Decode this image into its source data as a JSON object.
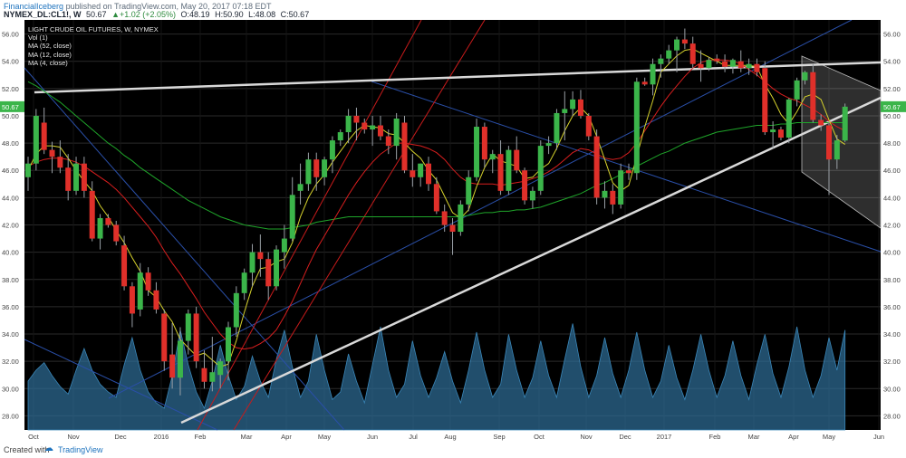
{
  "header": {
    "publisher": "FinancialIceberg",
    "publish_text": "published on TradingView.com, May 20, 2017 07:18 EDT",
    "symbol": "NYMEX_DL:CL1!, W",
    "last": "50.67",
    "change": "▲+1.02 (+2.05%)",
    "open": "O:48.19",
    "high": "H:50.90",
    "low": "L:48.08",
    "close": "C:50.67"
  },
  "legend": {
    "title": "LIGHT CRUDE OIL FUTURES, W, NYMEX",
    "items": [
      "Vol (1)",
      "MA (52, close)",
      "MA (12, close)",
      "MA (4, close)"
    ]
  },
  "footer": {
    "created_with": "Created with",
    "brand": "TradingView"
  },
  "colors": {
    "background": "#000000",
    "up": "#3bb54a",
    "down": "#e0302a",
    "ma52": "#1fa52a",
    "ma12": "#d81e1e",
    "ma4": "#d6d22c",
    "volume": "#2f6f9a",
    "trendline": "#d9d9d9",
    "channel_blue": "#2a4fa8",
    "channel_red": "#c81b1b",
    "price_badge": "#3bb54a"
  },
  "chart_data": {
    "type": "candlestick",
    "title": "LIGHT CRUDE OIL FUTURES, W, NYMEX",
    "ylim": [
      27,
      57
    ],
    "y_ticks": [
      "28.00",
      "30.00",
      "32.00",
      "34.00",
      "36.00",
      "38.00",
      "40.00",
      "42.00",
      "44.00",
      "46.00",
      "48.00",
      "50.00",
      "52.00",
      "54.00",
      "56.00"
    ],
    "last_price_label": "50.67",
    "x_ticks": [
      "Oct",
      "Nov",
      "Dec",
      "2016",
      "Feb",
      "Mar",
      "Apr",
      "May",
      "Jun",
      "Jul",
      "Aug",
      "Sep",
      "Oct",
      "Nov",
      "Dec",
      "2017",
      "Feb",
      "Mar",
      "Apr",
      "May",
      "Jun"
    ],
    "ohlc": [
      [
        45.5,
        47.0,
        44.5,
        46.5
      ],
      [
        46.5,
        50.5,
        46.0,
        50.0
      ],
      [
        49.5,
        50.6,
        47.2,
        47.5
      ],
      [
        47.5,
        48.1,
        45.8,
        47.0
      ],
      [
        47.0,
        48.2,
        45.8,
        46.2
      ],
      [
        46.2,
        47.2,
        43.8,
        44.5
      ],
      [
        44.5,
        47.0,
        44.2,
        46.5
      ],
      [
        46.5,
        47.0,
        44.0,
        44.5
      ],
      [
        44.5,
        45.2,
        40.8,
        41.0
      ],
      [
        41.0,
        42.8,
        40.2,
        42.5
      ],
      [
        42.5,
        42.8,
        41.8,
        42.0
      ],
      [
        42.0,
        42.3,
        40.5,
        40.8
      ],
      [
        40.5,
        41.2,
        37.2,
        37.5
      ],
      [
        37.5,
        37.8,
        34.5,
        35.5
      ],
      [
        35.8,
        39.2,
        35.3,
        38.5
      ],
      [
        38.5,
        38.9,
        36.8,
        37.2
      ],
      [
        37.2,
        37.8,
        35.5,
        35.8
      ],
      [
        35.5,
        35.8,
        31.3,
        32.0
      ],
      [
        32.5,
        34.8,
        30.0,
        30.8
      ],
      [
        30.8,
        34.5,
        29.5,
        33.5
      ],
      [
        33.5,
        35.8,
        32.5,
        35.5
      ],
      [
        35.5,
        36.0,
        31.5,
        32.0
      ],
      [
        31.5,
        32.8,
        30.0,
        30.5
      ],
      [
        30.5,
        33.8,
        29.8,
        31.2
      ],
      [
        31.0,
        32.2,
        30.0,
        32.0
      ],
      [
        32.0,
        34.9,
        30.6,
        34.5
      ],
      [
        34.5,
        37.5,
        33.8,
        37.0
      ],
      [
        37.0,
        38.8,
        36.5,
        38.5
      ],
      [
        38.5,
        40.6,
        37.5,
        40.0
      ],
      [
        40.0,
        41.3,
        38.2,
        39.5
      ],
      [
        39.5,
        40.0,
        36.5,
        37.5
      ],
      [
        37.5,
        40.5,
        37.2,
        40.2
      ],
      [
        40.0,
        42.0,
        38.8,
        41.0
      ],
      [
        41.0,
        45.5,
        40.8,
        44.2
      ],
      [
        44.5,
        46.5,
        43.5,
        45.0
      ],
      [
        45.0,
        47.3,
        44.5,
        46.8
      ],
      [
        46.8,
        47.3,
        44.5,
        45.5
      ],
      [
        45.5,
        47.0,
        44.9,
        46.8
      ],
      [
        46.8,
        48.5,
        45.8,
        48.2
      ],
      [
        48.2,
        49.0,
        47.8,
        48.8
      ],
      [
        48.8,
        50.5,
        48.0,
        50.0
      ],
      [
        50.0,
        50.6,
        48.2,
        49.5
      ],
      [
        49.5,
        49.8,
        48.7,
        49.0
      ],
      [
        49.0,
        50.0,
        47.8,
        49.3
      ],
      [
        49.3,
        50.0,
        48.2,
        48.5
      ],
      [
        48.5,
        49.0,
        47.2,
        47.8
      ],
      [
        47.8,
        50.2,
        46.8,
        49.8
      ],
      [
        49.5,
        50.0,
        45.8,
        46.0
      ],
      [
        46.0,
        47.2,
        44.8,
        45.5
      ],
      [
        45.5,
        46.5,
        44.8,
        46.5
      ],
      [
        46.5,
        47.0,
        44.5,
        45.0
      ],
      [
        45.0,
        45.5,
        42.8,
        43.0
      ],
      [
        43.0,
        43.5,
        41.5,
        42.0
      ],
      [
        42.0,
        42.5,
        39.8,
        41.5
      ],
      [
        41.5,
        43.8,
        41.2,
        43.5
      ],
      [
        43.5,
        46.0,
        43.0,
        45.5
      ],
      [
        45.5,
        49.8,
        45.2,
        49.2
      ],
      [
        49.2,
        49.5,
        46.2,
        46.8
      ],
      [
        46.8,
        47.5,
        45.8,
        47.2
      ],
      [
        47.2,
        48.2,
        44.2,
        44.5
      ],
      [
        44.5,
        47.8,
        44.2,
        47.5
      ],
      [
        47.5,
        48.5,
        45.8,
        46.0
      ],
      [
        46.0,
        46.2,
        43.5,
        43.8
      ],
      [
        43.8,
        44.8,
        43.2,
        44.5
      ],
      [
        44.5,
        48.2,
        44.2,
        47.8
      ],
      [
        47.8,
        48.5,
        47.2,
        48.0
      ],
      [
        48.0,
        50.5,
        47.5,
        50.2
      ],
      [
        50.2,
        51.8,
        48.2,
        50.5
      ],
      [
        50.5,
        51.8,
        50.0,
        51.2
      ],
      [
        51.2,
        51.9,
        49.8,
        50.0
      ],
      [
        50.0,
        50.2,
        48.2,
        48.5
      ],
      [
        48.5,
        49.0,
        43.5,
        44.0
      ],
      [
        44.0,
        45.2,
        43.2,
        44.5
      ],
      [
        44.5,
        45.0,
        42.8,
        43.5
      ],
      [
        43.5,
        46.5,
        43.2,
        46.0
      ],
      [
        46.0,
        46.5,
        45.3,
        45.8
      ],
      [
        45.8,
        52.8,
        45.3,
        52.5
      ],
      [
        52.5,
        52.8,
        52.2,
        52.3
      ],
      [
        52.3,
        54.2,
        51.5,
        53.8
      ],
      [
        53.8,
        54.5,
        52.8,
        54.2
      ],
      [
        54.2,
        55.2,
        53.8,
        54.8
      ],
      [
        54.8,
        55.8,
        53.2,
        55.6
      ],
      [
        55.6,
        56.4,
        54.9,
        55.3
      ],
      [
        55.3,
        55.8,
        53.5,
        53.8
      ],
      [
        53.8,
        54.8,
        52.5,
        53.5
      ],
      [
        53.5,
        54.3,
        53.3,
        54.1
      ],
      [
        54.2,
        54.5,
        53.8,
        54.0
      ],
      [
        54.0,
        54.5,
        53.2,
        53.6
      ],
      [
        53.6,
        54.2,
        53.1,
        54.1
      ],
      [
        54.0,
        54.8,
        53.2,
        53.5
      ],
      [
        53.5,
        54.2,
        53.0,
        53.8
      ],
      [
        53.8,
        54.2,
        52.9,
        53.2
      ],
      [
        53.5,
        54.0,
        48.6,
        48.8
      ],
      [
        48.8,
        49.6,
        47.6,
        49.0
      ],
      [
        49.0,
        49.2,
        48.2,
        48.4
      ],
      [
        48.4,
        51.3,
        48.0,
        51.2
      ],
      [
        51.2,
        52.8,
        50.7,
        52.6
      ],
      [
        52.6,
        53.3,
        52.3,
        53.2
      ],
      [
        53.2,
        53.8,
        49.5,
        49.7
      ],
      [
        49.7,
        50.1,
        48.9,
        49.3
      ],
      [
        49.3,
        49.6,
        44.2,
        46.8
      ],
      [
        46.8,
        48.6,
        46.1,
        48.2
      ],
      [
        48.19,
        50.9,
        48.08,
        50.67
      ]
    ],
    "ma4": [
      46.0,
      47.2,
      47.8,
      47.8,
      47.7,
      46.9,
      46.0,
      45.2,
      44.5,
      43.4,
      42.6,
      41.6,
      40.7,
      39.6,
      38.6,
      37.2,
      36.7,
      35.7,
      34.9,
      33.6,
      33.0,
      32.4,
      32.6,
      32.1,
      31.6,
      31.8,
      33.5,
      35.6,
      37.5,
      38.8,
      38.9,
      39.3,
      39.5,
      40.7,
      42.6,
      44.0,
      45.0,
      45.7,
      46.6,
      47.4,
      48.2,
      48.9,
      49.3,
      49.2,
      49.1,
      48.7,
      48.6,
      48.0,
      47.4,
      46.9,
      46.0,
      45.3,
      44.1,
      42.9,
      42.5,
      43.1,
      44.8,
      46.2,
      47.2,
      46.7,
      46.5,
      46.3,
      45.4,
      45.5,
      46.1,
      46.5,
      47.6,
      48.9,
      50.0,
      50.6,
      50.0,
      48.5,
      46.8,
      45.1,
      44.5,
      44.9,
      47.0,
      49.2,
      51.1,
      53.2,
      53.8,
      54.4,
      54.8,
      54.9,
      54.6,
      54.3,
      54.0,
      53.7,
      53.7,
      53.7,
      53.7,
      53.6,
      52.3,
      51.3,
      50.1,
      49.4,
      50.3,
      51.4,
      51.6,
      51.2,
      49.7,
      48.3,
      47.9
    ],
    "ma12": [
      46.3,
      46.6,
      46.8,
      46.9,
      46.9,
      46.8,
      46.6,
      46.3,
      45.9,
      45.5,
      45.1,
      44.6,
      44.0,
      43.3,
      42.6,
      41.9,
      41.1,
      40.1,
      39.2,
      38.4,
      37.5,
      36.6,
      35.6,
      34.8,
      34.0,
      33.4,
      33.0,
      32.9,
      33.0,
      33.3,
      33.7,
      34.3,
      35.3,
      36.4,
      37.7,
      39.0,
      40.2,
      41.2,
      42.2,
      43.2,
      44.2,
      45.1,
      45.9,
      46.6,
      47.2,
      47.6,
      48.0,
      48.0,
      47.9,
      47.8,
      47.6,
      47.3,
      46.8,
      46.1,
      45.5,
      45.1,
      45.0,
      45.0,
      45.0,
      44.9,
      45.0,
      45.1,
      45.2,
      45.4,
      45.6,
      45.9,
      46.3,
      46.8,
      47.3,
      47.6,
      47.5,
      47.2,
      46.9,
      46.8,
      46.9,
      47.3,
      48.0,
      48.9,
      49.8,
      50.7,
      51.5,
      52.2,
      52.9,
      53.5,
      53.9,
      54.1,
      54.1,
      54.1,
      54.0,
      53.8,
      53.4,
      53.0,
      52.5,
      52.0,
      51.6,
      51.3,
      51.1,
      50.8,
      50.5,
      50.1,
      49.6,
      49.2,
      48.9
    ],
    "ma52": [
      52.5,
      52.2,
      51.8,
      51.4,
      51.0,
      50.5,
      50.0,
      49.5,
      49.0,
      48.5,
      48.0,
      47.6,
      47.1,
      46.7,
      46.2,
      45.8,
      45.4,
      45.0,
      44.6,
      44.2,
      43.8,
      43.5,
      43.2,
      42.9,
      42.6,
      42.4,
      42.2,
      42.0,
      41.9,
      41.8,
      41.7,
      41.7,
      41.7,
      41.8,
      41.9,
      42.0,
      42.2,
      42.3,
      42.4,
      42.5,
      42.6,
      42.6,
      42.6,
      42.6,
      42.6,
      42.6,
      42.6,
      42.6,
      42.6,
      42.6,
      42.6,
      42.6,
      42.6,
      42.6,
      42.6,
      42.7,
      42.8,
      42.9,
      42.9,
      43.0,
      43.0,
      43.1,
      43.1,
      43.2,
      43.3,
      43.5,
      43.7,
      43.9,
      44.1,
      44.3,
      44.6,
      44.9,
      45.1,
      45.4,
      45.7,
      46.0,
      46.3,
      46.6,
      46.9,
      47.2,
      47.4,
      47.7,
      48.0,
      48.2,
      48.4,
      48.6,
      48.8,
      48.9,
      49.0,
      49.1,
      49.2,
      49.3,
      49.3,
      49.3,
      49.4,
      49.4,
      49.5,
      49.5,
      49.5,
      49.5,
      49.5,
      49.5,
      49.5
    ],
    "volume": [
      0.45,
      0.55,
      0.62,
      0.5,
      0.4,
      0.33,
      0.55,
      0.75,
      0.55,
      0.42,
      0.35,
      0.3,
      0.6,
      0.85,
      0.55,
      0.35,
      0.25,
      0.2,
      0.5,
      0.92,
      0.6,
      0.35,
      0.2,
      0.45,
      0.78,
      0.5,
      0.28,
      0.4,
      0.68,
      0.45,
      0.3,
      0.65,
      0.92,
      0.58,
      0.3,
      0.45,
      0.88,
      0.55,
      0.28,
      0.35,
      0.7,
      0.45,
      0.25,
      0.6,
      0.95,
      0.55,
      0.3,
      0.42,
      0.82,
      0.5,
      0.3,
      0.48,
      0.72,
      0.45,
      0.25,
      0.55,
      0.9,
      0.55,
      0.3,
      0.42,
      0.88,
      0.55,
      0.3,
      0.48,
      0.82,
      0.5,
      0.3,
      0.65,
      0.98,
      0.58,
      0.3,
      0.5,
      0.85,
      0.52,
      0.3,
      0.55,
      0.9,
      0.55,
      0.3,
      0.45,
      0.78,
      0.48,
      0.28,
      0.55,
      0.88,
      0.55,
      0.3,
      0.5,
      0.82,
      0.5,
      0.28,
      0.6,
      0.88,
      0.52,
      0.3,
      0.58,
      0.95,
      0.55,
      0.3,
      0.5,
      0.85,
      0.55,
      0.92
    ]
  }
}
